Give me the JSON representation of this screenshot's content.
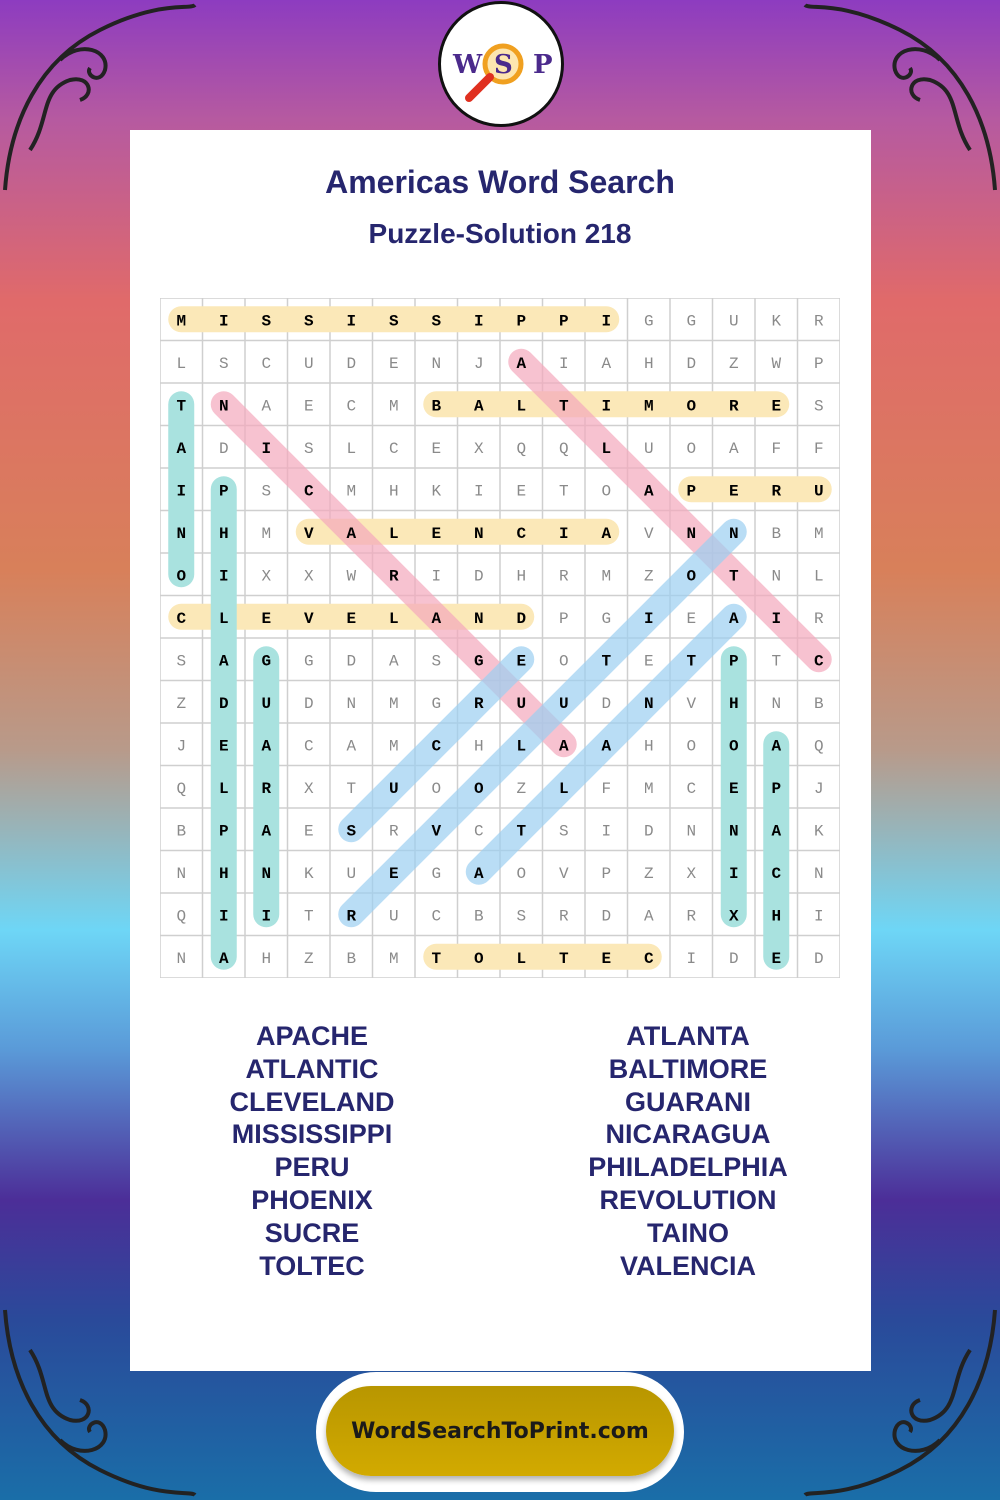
{
  "logo": {
    "letters": [
      "W",
      "S",
      "P"
    ]
  },
  "title": "Americas Word Search",
  "subtitle": "Puzzle-Solution 218",
  "grid": [
    "MISSISSIPPIGGUKR",
    "LSCUDENJAIAHDZWP",
    "TNAECMBALTIMORES",
    "ADISLCEXQQLUOAFF",
    "IPSCMHKIETOAPERU",
    "NHMVALENCIAVNNBM",
    "OIXXWRIDHRMZOTNL",
    "CLEVELANDPGIEAIR",
    "SAGGDASGEOTETPTC",
    "ZDUDNMGRUUDNVHNB",
    "JEACAMCHLAAHOOAQ",
    "QLRXTUOOZLFMCEPJ",
    "BPAESRVCTSIDNNAK",
    "NHNKUEGAOVPZXICN",
    "QIITRUCBSRDARXHI",
    "NAHZBMTOLTECIDED"
  ],
  "colors": {
    "yellow": "#fbe8b8",
    "teal": "#a9e2df",
    "pink": "#f5a9bd",
    "blue": "#9ccff2",
    "text_dark": "#26266e",
    "footer_gold": "#c9a200"
  },
  "solutions": [
    {
      "word": "MISSISSIPPI",
      "start": [
        0,
        0
      ],
      "end": [
        0,
        10
      ],
      "color": "yellow"
    },
    {
      "word": "BALTIMORE",
      "start": [
        2,
        6
      ],
      "end": [
        2,
        14
      ],
      "color": "yellow"
    },
    {
      "word": "PERU",
      "start": [
        4,
        12
      ],
      "end": [
        4,
        15
      ],
      "color": "yellow"
    },
    {
      "word": "VALENCIA",
      "start": [
        5,
        3
      ],
      "end": [
        5,
        10
      ],
      "color": "yellow"
    },
    {
      "word": "CLEVELAND",
      "start": [
        7,
        0
      ],
      "end": [
        7,
        8
      ],
      "color": "yellow"
    },
    {
      "word": "TOLTEC",
      "start": [
        15,
        6
      ],
      "end": [
        15,
        11
      ],
      "color": "yellow"
    },
    {
      "word": "TAINO",
      "start": [
        2,
        0
      ],
      "end": [
        6,
        0
      ],
      "color": "teal"
    },
    {
      "word": "PHILADELPHIA",
      "start": [
        4,
        1
      ],
      "end": [
        15,
        1
      ],
      "color": "teal"
    },
    {
      "word": "GUARANI",
      "start": [
        8,
        2
      ],
      "end": [
        14,
        2
      ],
      "color": "teal"
    },
    {
      "word": "PHOENIX",
      "start": [
        8,
        13
      ],
      "end": [
        14,
        13
      ],
      "color": "teal"
    },
    {
      "word": "APACHE",
      "start": [
        10,
        14
      ],
      "end": [
        15,
        14
      ],
      "color": "teal"
    },
    {
      "word": "NICARAGUA",
      "start": [
        2,
        1
      ],
      "end": [
        10,
        9
      ],
      "color": "pink"
    },
    {
      "word": "ATLANTIC",
      "start": [
        1,
        8
      ],
      "end": [
        8,
        15
      ],
      "color": "pink"
    },
    {
      "word": "SUCRE",
      "start": [
        12,
        4
      ],
      "end": [
        8,
        8
      ],
      "color": "blue"
    },
    {
      "word": "REVOLUTION",
      "start": [
        14,
        4
      ],
      "end": [
        5,
        13
      ],
      "color": "blue"
    },
    {
      "word": "ATLANTA",
      "start": [
        13,
        7
      ],
      "end": [
        7,
        13
      ],
      "color": "blue"
    }
  ],
  "word_list": {
    "left": [
      "APACHE",
      "ATLANTIC",
      "CLEVELAND",
      "MISSISSIPPI",
      "PERU",
      "PHOENIX",
      "SUCRE",
      "TOLTEC"
    ],
    "right": [
      "ATLANTA",
      "BALTIMORE",
      "GUARANI",
      "NICARAGUA",
      "PHILADELPHIA",
      "REVOLUTION",
      "TAINO",
      "VALENCIA"
    ]
  },
  "footer": {
    "site": "WordSearchToPrint.com"
  }
}
